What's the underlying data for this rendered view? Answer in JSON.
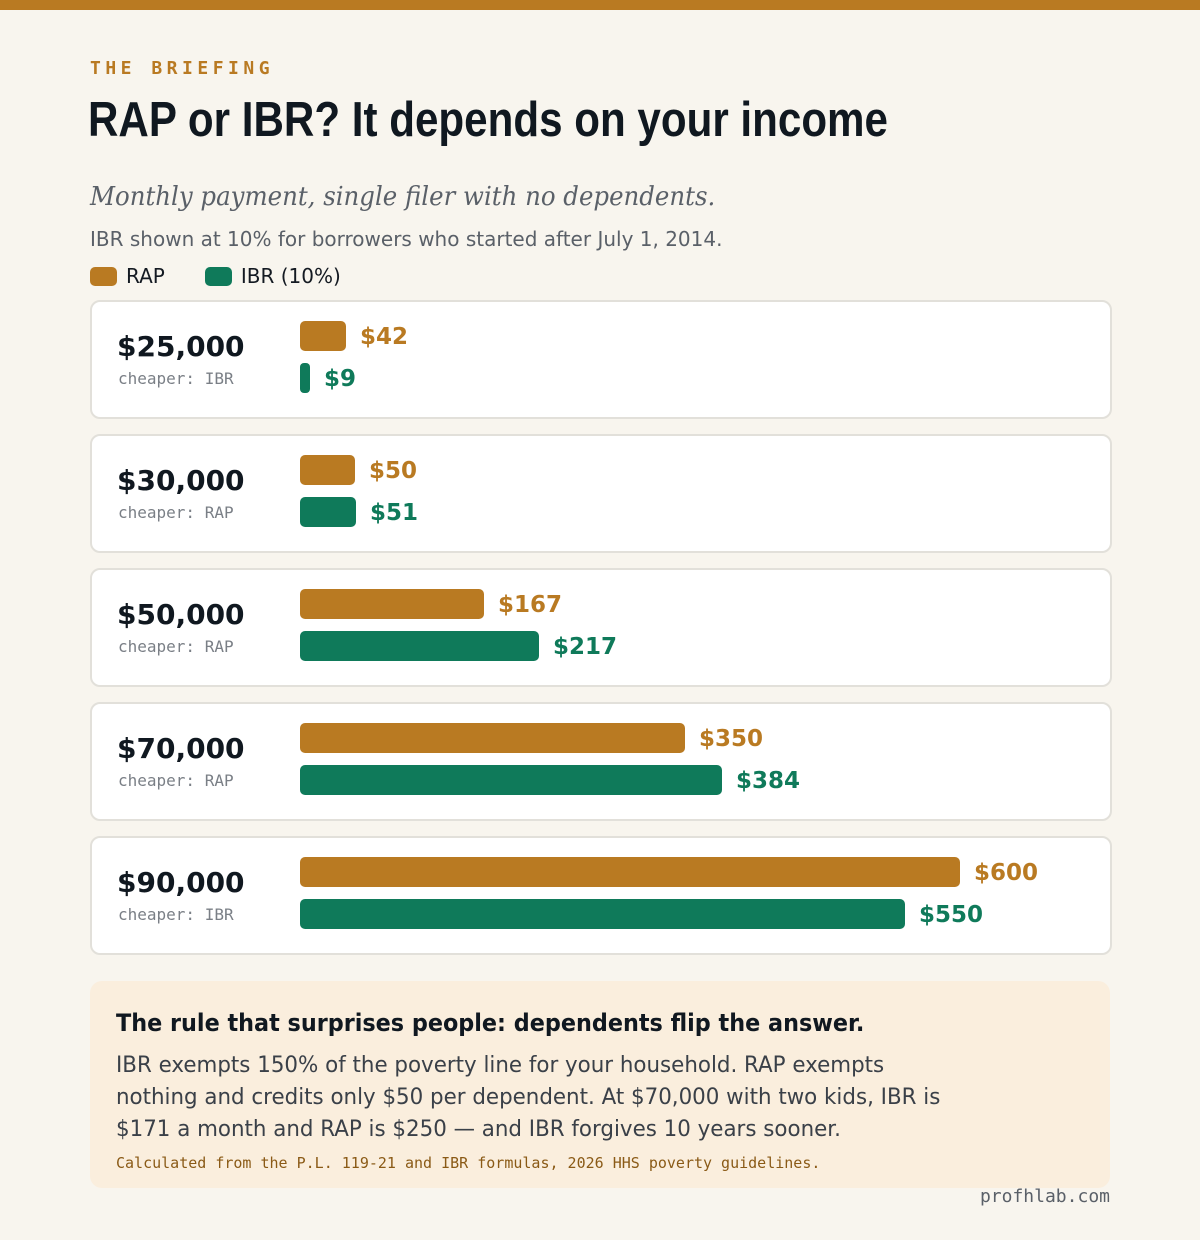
{
  "kicker": "THE BRIEFING",
  "chart_data": {
    "type": "bar",
    "orientation": "horizontal",
    "title": "RAP or IBR? It depends on your income",
    "subtitle": "Monthly payment, single filer with no dependents.",
    "note": "IBR shown at 10% for borrowers who started after July 1, 2014.",
    "legend": [
      {
        "label": "RAP",
        "color": "#b97a22"
      },
      {
        "label": "IBR (10%)",
        "color": "#0f7a5a"
      }
    ],
    "categories": [
      "$25,000",
      "$30,000",
      "$50,000",
      "$70,000",
      "$90,000"
    ],
    "cheaper": [
      "cheaper: IBR",
      "cheaper: RAP",
      "cheaper: RAP",
      "cheaper: RAP",
      "cheaper: IBR"
    ],
    "series": [
      {
        "name": "RAP",
        "color": "#b97a22",
        "values": [
          42,
          50,
          167,
          350,
          600
        ],
        "labels": [
          "$42",
          "$50",
          "$167",
          "$350",
          "$600"
        ]
      },
      {
        "name": "IBR (10%)",
        "color": "#0f7a5a",
        "values": [
          9,
          51,
          217,
          384,
          550
        ],
        "labels": [
          "$9",
          "$51",
          "$217",
          "$384",
          "$550"
        ]
      }
    ],
    "xlim": [
      0,
      600
    ]
  },
  "callout": {
    "heading": "The rule that surprises people: dependents flip the answer.",
    "body": "IBR exempts 150% of the poverty line for your household. RAP exempts nothing and credits only $50 per dependent. At $70,000 with two kids, IBR is $171 a month and RAP is $250 — and IBR forgives 10 years sooner.",
    "source": "Calculated from the P.L. 119-21 and IBR formulas, 2026 HHS poverty guidelines."
  },
  "brand": "profhlab.com"
}
